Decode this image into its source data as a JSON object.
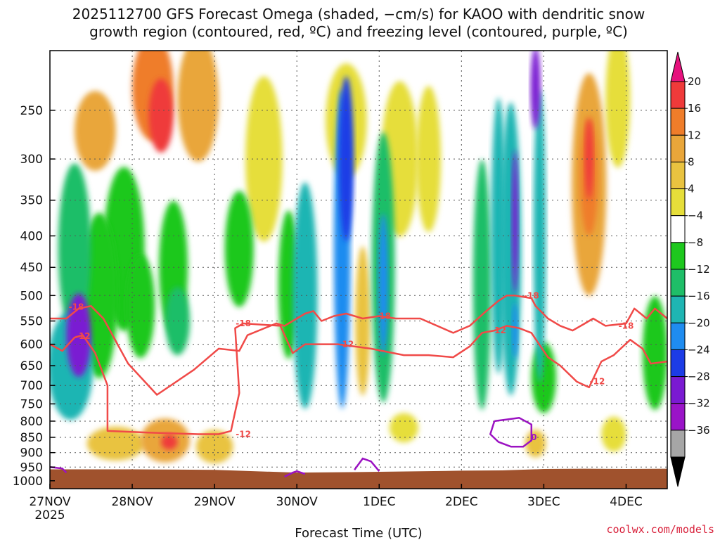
{
  "title_line1": "2025112700 GFS Forecast Omega (shaded, −cm/s) for KAOO with dendritic snow",
  "title_line2": "growth region (contoured, red, ºC) and freezing level (contoured, purple, ºC)",
  "credit": "coolwx.com/models",
  "chart_data": {
    "type": "heatmap",
    "title": "2025112700 GFS Forecast Omega (shaded, −cm/s) for KAOO with dendritic snow growth region (contoured, red, ºC) and freezing level (contoured, purple, ºC)",
    "xlabel": "Forecast Time (UTC)",
    "ylabel": "",
    "x_ticks": [
      {
        "label": "27NOV",
        "sub": "2025",
        "day": 0
      },
      {
        "label": "28NOV",
        "sub": "",
        "day": 1
      },
      {
        "label": "29NOV",
        "sub": "",
        "day": 2
      },
      {
        "label": "30NOV",
        "sub": "",
        "day": 3
      },
      {
        "label": "1DEC",
        "sub": "",
        "day": 4
      },
      {
        "label": "2DEC",
        "sub": "",
        "day": 5
      },
      {
        "label": "3DEC",
        "sub": "",
        "day": 6
      },
      {
        "label": "4DEC",
        "sub": "",
        "day": 7
      }
    ],
    "xlim_days": [
      0,
      7.5
    ],
    "y_ticks": [
      250,
      300,
      350,
      400,
      450,
      500,
      550,
      600,
      650,
      700,
      750,
      800,
      850,
      900,
      950,
      1000
    ],
    "ylim_hpa": [
      200,
      1030
    ],
    "y_scale": "log-pressure",
    "grid": true,
    "colorbar": {
      "labels": [
        "20",
        "16",
        "12",
        "8",
        "4",
        "−4",
        "−8",
        "−12",
        "−16",
        "−20",
        "−24",
        "−28",
        "−32",
        "−36"
      ],
      "colors": [
        "#e6127d",
        "#ef3a3a",
        "#ef7d2a",
        "#e9a63a",
        "#e9c340",
        "#e6de3a",
        "#ffffff",
        "#1ec81e",
        "#1fbe68",
        "#1fb5b3",
        "#1f8cf0",
        "#1c3ce6",
        "#7a1ad2",
        "#9a14c8",
        "#a6a6a6",
        "#000000"
      ]
    },
    "omega_blobs": [
      {
        "x": 0.25,
        "p": 650,
        "w": 0.55,
        "h": 260,
        "v": -14
      },
      {
        "x": 0.35,
        "p": 580,
        "w": 0.3,
        "h": 180,
        "v": -24
      },
      {
        "x": 0.3,
        "p": 420,
        "w": 0.4,
        "h": 260,
        "v": -10
      },
      {
        "x": 0.6,
        "p": 500,
        "w": 0.45,
        "h": 300,
        "v": -7
      },
      {
        "x": 0.9,
        "p": 420,
        "w": 0.5,
        "h": 250,
        "v": -6
      },
      {
        "x": 1.1,
        "p": 520,
        "w": 0.35,
        "h": 200,
        "v": -6
      },
      {
        "x": 1.5,
        "p": 450,
        "w": 0.35,
        "h": 220,
        "v": -6
      },
      {
        "x": 1.55,
        "p": 550,
        "w": 0.3,
        "h": 140,
        "v": -10
      },
      {
        "x": 0.55,
        "p": 270,
        "w": 0.5,
        "h": 80,
        "v": 9
      },
      {
        "x": 1.25,
        "p": 230,
        "w": 0.5,
        "h": 90,
        "v": 12
      },
      {
        "x": 1.35,
        "p": 255,
        "w": 0.3,
        "h": 70,
        "v": 19
      },
      {
        "x": 1.8,
        "p": 240,
        "w": 0.5,
        "h": 110,
        "v": 8
      },
      {
        "x": 2.6,
        "p": 300,
        "w": 0.45,
        "h": 180,
        "v": 5
      },
      {
        "x": 2.3,
        "p": 420,
        "w": 0.35,
        "h": 180,
        "v": -6
      },
      {
        "x": 2.9,
        "p": 480,
        "w": 0.25,
        "h": 260,
        "v": -5
      },
      {
        "x": 0.8,
        "p": 870,
        "w": 0.7,
        "h": 110,
        "v": 6
      },
      {
        "x": 1.4,
        "p": 860,
        "w": 0.6,
        "h": 140,
        "v": 10
      },
      {
        "x": 1.45,
        "p": 865,
        "w": 0.2,
        "h": 50,
        "v": 18
      },
      {
        "x": 2.0,
        "p": 880,
        "w": 0.45,
        "h": 110,
        "v": 6
      },
      {
        "x": 3.1,
        "p": 500,
        "w": 0.3,
        "h": 400,
        "v": -12
      },
      {
        "x": 3.55,
        "p": 420,
        "w": 0.2,
        "h": 450,
        "v": -18
      },
      {
        "x": 3.6,
        "p": 300,
        "w": 0.18,
        "h": 180,
        "v": -22
      },
      {
        "x": 3.8,
        "p": 550,
        "w": 0.18,
        "h": 300,
        "v": 7
      },
      {
        "x": 3.6,
        "p": 260,
        "w": 0.5,
        "h": 110,
        "v": 5
      },
      {
        "x": 4.05,
        "p": 450,
        "w": 0.28,
        "h": 420,
        "v": -11
      },
      {
        "x": 4.05,
        "p": 480,
        "w": 0.12,
        "h": 250,
        "v": -16
      },
      {
        "x": 4.25,
        "p": 300,
        "w": 0.45,
        "h": 170,
        "v": 5
      },
      {
        "x": 4.3,
        "p": 820,
        "w": 0.35,
        "h": 90,
        "v": 5
      },
      {
        "x": 4.6,
        "p": 300,
        "w": 0.3,
        "h": 160,
        "v": 5
      },
      {
        "x": 5.25,
        "p": 480,
        "w": 0.22,
        "h": 420,
        "v": -9
      },
      {
        "x": 5.45,
        "p": 400,
        "w": 0.18,
        "h": 380,
        "v": -12
      },
      {
        "x": 5.6,
        "p": 420,
        "w": 0.25,
        "h": 420,
        "v": -15
      },
      {
        "x": 5.65,
        "p": 380,
        "w": 0.08,
        "h": 200,
        "v": -26
      },
      {
        "x": 5.65,
        "p": 570,
        "w": 0.07,
        "h": 120,
        "v": -19
      },
      {
        "x": 5.95,
        "p": 400,
        "w": 0.15,
        "h": 400,
        "v": -12
      },
      {
        "x": 5.9,
        "p": 230,
        "w": 0.12,
        "h": 70,
        "v": -26
      },
      {
        "x": 6.0,
        "p": 680,
        "w": 0.3,
        "h": 180,
        "v": -6
      },
      {
        "x": 5.9,
        "p": 870,
        "w": 0.25,
        "h": 90,
        "v": 6
      },
      {
        "x": 6.55,
        "p": 330,
        "w": 0.42,
        "h": 260,
        "v": 8
      },
      {
        "x": 6.55,
        "p": 320,
        "w": 0.22,
        "h": 140,
        "v": 12
      },
      {
        "x": 6.55,
        "p": 300,
        "w": 0.1,
        "h": 90,
        "v": 19
      },
      {
        "x": 6.9,
        "p": 240,
        "w": 0.3,
        "h": 120,
        "v": 5
      },
      {
        "x": 7.35,
        "p": 620,
        "w": 0.3,
        "h": 260,
        "v": -7
      },
      {
        "x": 6.85,
        "p": 840,
        "w": 0.3,
        "h": 110,
        "v": 5
      }
    ],
    "contours": [
      {
        "name": "-18",
        "color": "#f04a48",
        "x": [
          0,
          0.2,
          0.35,
          0.5,
          0.65,
          0.95,
          1.3,
          1.75,
          2.05,
          2.3,
          2.4,
          2.75,
          2.85,
          3.0,
          3.1,
          3.2,
          3.3,
          3.45,
          3.6,
          3.8,
          4.0,
          4.2,
          4.5,
          4.9,
          5.1,
          5.3,
          5.45,
          5.55,
          5.65,
          5.85,
          5.9,
          6.05,
          6.2,
          6.35,
          6.5,
          6.6,
          6.75,
          7.0,
          7.1,
          7.25,
          7.35,
          7.5
        ],
        "p": [
          545,
          545,
          525,
          520,
          545,
          645,
          725,
          660,
          610,
          615,
          580,
          555,
          560,
          545,
          535,
          530,
          550,
          540,
          535,
          545,
          540,
          545,
          545,
          575,
          560,
          530,
          510,
          500,
          500,
          505,
          520,
          545,
          560,
          570,
          555,
          545,
          560,
          555,
          525,
          545,
          525,
          545
        ]
      },
      {
        "name": "-12",
        "color": "#f04a48",
        "x": [
          0,
          0.15,
          0.3,
          0.4,
          0.55,
          0.7,
          0.7,
          1.2,
          1.8,
          2.05,
          2.2,
          2.3,
          2.25,
          2.35,
          2.8,
          2.95,
          3.1,
          3.5,
          3.9,
          4.3,
          4.6,
          4.9,
          5.1,
          5.25,
          5.4,
          5.55,
          5.7,
          5.85,
          6.05,
          6.2,
          6.4,
          6.55,
          6.7,
          6.85,
          7.05,
          7.2,
          7.3,
          7.5
        ],
        "p": [
          600,
          615,
          585,
          580,
          620,
          700,
          830,
          835,
          840,
          840,
          830,
          720,
          565,
          555,
          560,
          620,
          600,
          600,
          610,
          625,
          625,
          630,
          605,
          575,
          570,
          560,
          565,
          575,
          630,
          650,
          690,
          705,
          640,
          625,
          590,
          610,
          645,
          640
        ]
      },
      {
        "name": "0",
        "color": "#9b12c2",
        "x": [
          5.4,
          5.35,
          5.45,
          5.6,
          5.75,
          5.85,
          5.85,
          5.7,
          5.55,
          5.4
        ],
        "p": [
          800,
          840,
          865,
          880,
          880,
          860,
          810,
          790,
          795,
          800
        ]
      }
    ],
    "freezing_fragments": [
      {
        "x": [
          0,
          0.15,
          0.2
        ],
        "p": [
          950,
          955,
          970
        ]
      },
      {
        "x": [
          2.85,
          2.95,
          3.0,
          3.1
        ],
        "p": [
          985,
          970,
          965,
          975
        ]
      },
      {
        "x": [
          3.7,
          3.8,
          3.9,
          4.0
        ],
        "p": [
          960,
          920,
          930,
          965
        ]
      }
    ],
    "contour_labels": [
      {
        "text": "-18",
        "x": 0.32,
        "p": 522
      },
      {
        "text": "-12",
        "x": 0.4,
        "p": 582
      },
      {
        "text": "-18",
        "x": 2.35,
        "p": 555
      },
      {
        "text": "-12",
        "x": 2.35,
        "p": 840
      },
      {
        "text": "-12",
        "x": 3.6,
        "p": 600
      },
      {
        "text": "-18",
        "x": 4.05,
        "p": 540
      },
      {
        "text": "-12",
        "x": 5.45,
        "p": 570
      },
      {
        "text": "-18",
        "x": 5.85,
        "p": 500
      },
      {
        "text": "-12",
        "x": 6.65,
        "p": 690
      },
      {
        "text": "-18",
        "x": 7.0,
        "p": 560
      },
      {
        "text": "0",
        "x": 5.88,
        "p": 850
      }
    ],
    "terrain": {
      "color": "#a0522d",
      "x": [
        0,
        1,
        2,
        3,
        4,
        5,
        5.5,
        6.0,
        6.5,
        7.0,
        7.5
      ],
      "p": [
        958,
        958,
        960,
        970,
        967,
        963,
        962,
        957,
        956,
        957,
        956
      ]
    }
  }
}
